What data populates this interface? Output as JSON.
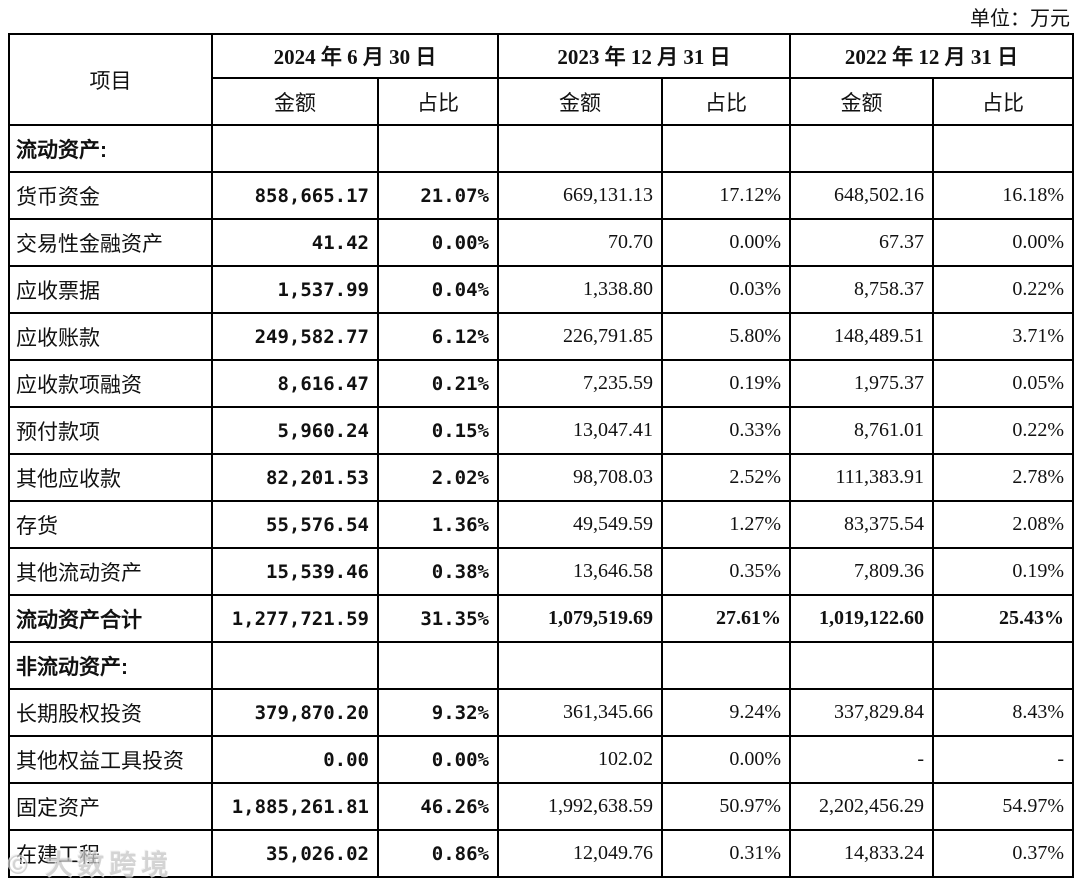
{
  "page": {
    "unit_label": "单位：万元",
    "watermark": "© 大数跨境"
  },
  "colors": {
    "border": "#000000",
    "text": "#111111",
    "watermark": "#c6c6c6",
    "background": "#ffffff"
  },
  "table": {
    "item_header": "项目",
    "groups": [
      {
        "date": "2024 年 6 月 30 日",
        "amount_label": "金额",
        "ratio_label": "占比"
      },
      {
        "date": "2023 年 12 月 31 日",
        "amount_label": "金额",
        "ratio_label": "占比"
      },
      {
        "date": "2022 年 12 月 31 日",
        "amount_label": "金额",
        "ratio_label": "占比"
      }
    ],
    "rows": [
      {
        "label": "流动资产:",
        "style": "section",
        "values": [
          "",
          "",
          "",
          "",
          "",
          ""
        ]
      },
      {
        "label": "货币资金",
        "style": "data",
        "values": [
          "858,665.17",
          "21.07%",
          "669,131.13",
          "17.12%",
          "648,502.16",
          "16.18%"
        ]
      },
      {
        "label": "交易性金融资产",
        "style": "data",
        "values": [
          "41.42",
          "0.00%",
          "70.70",
          "0.00%",
          "67.37",
          "0.00%"
        ]
      },
      {
        "label": "应收票据",
        "style": "data",
        "values": [
          "1,537.99",
          "0.04%",
          "1,338.80",
          "0.03%",
          "8,758.37",
          "0.22%"
        ]
      },
      {
        "label": "应收账款",
        "style": "data",
        "values": [
          "249,582.77",
          "6.12%",
          "226,791.85",
          "5.80%",
          "148,489.51",
          "3.71%"
        ]
      },
      {
        "label": "应收款项融资",
        "style": "data",
        "values": [
          "8,616.47",
          "0.21%",
          "7,235.59",
          "0.19%",
          "1,975.37",
          "0.05%"
        ]
      },
      {
        "label": "预付款项",
        "style": "data",
        "values": [
          "5,960.24",
          "0.15%",
          "13,047.41",
          "0.33%",
          "8,761.01",
          "0.22%"
        ]
      },
      {
        "label": "其他应收款",
        "style": "data",
        "values": [
          "82,201.53",
          "2.02%",
          "98,708.03",
          "2.52%",
          "111,383.91",
          "2.78%"
        ]
      },
      {
        "label": "存货",
        "style": "data",
        "values": [
          "55,576.54",
          "1.36%",
          "49,549.59",
          "1.27%",
          "83,375.54",
          "2.08%"
        ]
      },
      {
        "label": "其他流动资产",
        "style": "data",
        "values": [
          "15,539.46",
          "0.38%",
          "13,646.58",
          "0.35%",
          "7,809.36",
          "0.19%"
        ]
      },
      {
        "label": "流动资产合计",
        "style": "total",
        "values": [
          "1,277,721.59",
          "31.35%",
          "1,079,519.69",
          "27.61%",
          "1,019,122.60",
          "25.43%"
        ]
      },
      {
        "label": "非流动资产:",
        "style": "section",
        "values": [
          "",
          "",
          "",
          "",
          "",
          ""
        ]
      },
      {
        "label": "长期股权投资",
        "style": "data",
        "values": [
          "379,870.20",
          "9.32%",
          "361,345.66",
          "9.24%",
          "337,829.84",
          "8.43%"
        ]
      },
      {
        "label": "其他权益工具投资",
        "style": "data",
        "values": [
          "0.00",
          "0.00%",
          "102.02",
          "0.00%",
          "-",
          "-"
        ]
      },
      {
        "label": "固定资产",
        "style": "data",
        "values": [
          "1,885,261.81",
          "46.26%",
          "1,992,638.59",
          "50.97%",
          "2,202,456.29",
          "54.97%"
        ]
      },
      {
        "label": "在建工程",
        "style": "data",
        "values": [
          "35,026.02",
          "0.86%",
          "12,049.76",
          "0.31%",
          "14,833.24",
          "0.37%"
        ]
      }
    ]
  }
}
